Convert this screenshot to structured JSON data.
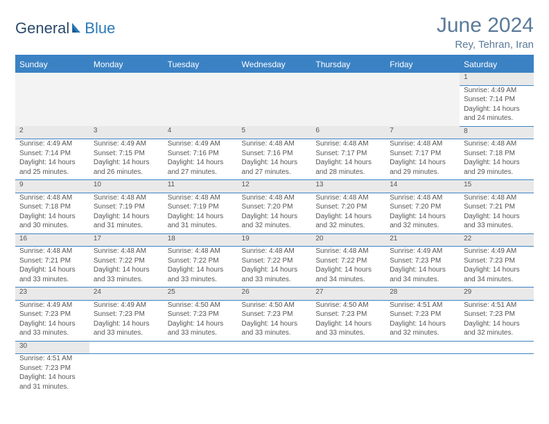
{
  "brand": {
    "word1": "General",
    "word2": "Blue"
  },
  "title": "June 2024",
  "location": "Rey, Tehran, Iran",
  "colors": {
    "header_bg": "#3b82c4",
    "header_text": "#ffffff",
    "daynum_bg": "#e9e9e9",
    "text": "#555555",
    "title_color": "#5a7a9a",
    "divider": "#3b82c4"
  },
  "weekdays": [
    "Sunday",
    "Monday",
    "Tuesday",
    "Wednesday",
    "Thursday",
    "Friday",
    "Saturday"
  ],
  "weeks": [
    [
      null,
      null,
      null,
      null,
      null,
      null,
      {
        "n": "1",
        "sr": "Sunrise: 4:49 AM",
        "ss": "Sunset: 7:14 PM",
        "d1": "Daylight: 14 hours",
        "d2": "and 24 minutes."
      }
    ],
    [
      {
        "n": "2",
        "sr": "Sunrise: 4:49 AM",
        "ss": "Sunset: 7:14 PM",
        "d1": "Daylight: 14 hours",
        "d2": "and 25 minutes."
      },
      {
        "n": "3",
        "sr": "Sunrise: 4:49 AM",
        "ss": "Sunset: 7:15 PM",
        "d1": "Daylight: 14 hours",
        "d2": "and 26 minutes."
      },
      {
        "n": "4",
        "sr": "Sunrise: 4:49 AM",
        "ss": "Sunset: 7:16 PM",
        "d1": "Daylight: 14 hours",
        "d2": "and 27 minutes."
      },
      {
        "n": "5",
        "sr": "Sunrise: 4:48 AM",
        "ss": "Sunset: 7:16 PM",
        "d1": "Daylight: 14 hours",
        "d2": "and 27 minutes."
      },
      {
        "n": "6",
        "sr": "Sunrise: 4:48 AM",
        "ss": "Sunset: 7:17 PM",
        "d1": "Daylight: 14 hours",
        "d2": "and 28 minutes."
      },
      {
        "n": "7",
        "sr": "Sunrise: 4:48 AM",
        "ss": "Sunset: 7:17 PM",
        "d1": "Daylight: 14 hours",
        "d2": "and 29 minutes."
      },
      {
        "n": "8",
        "sr": "Sunrise: 4:48 AM",
        "ss": "Sunset: 7:18 PM",
        "d1": "Daylight: 14 hours",
        "d2": "and 29 minutes."
      }
    ],
    [
      {
        "n": "9",
        "sr": "Sunrise: 4:48 AM",
        "ss": "Sunset: 7:18 PM",
        "d1": "Daylight: 14 hours",
        "d2": "and 30 minutes."
      },
      {
        "n": "10",
        "sr": "Sunrise: 4:48 AM",
        "ss": "Sunset: 7:19 PM",
        "d1": "Daylight: 14 hours",
        "d2": "and 31 minutes."
      },
      {
        "n": "11",
        "sr": "Sunrise: 4:48 AM",
        "ss": "Sunset: 7:19 PM",
        "d1": "Daylight: 14 hours",
        "d2": "and 31 minutes."
      },
      {
        "n": "12",
        "sr": "Sunrise: 4:48 AM",
        "ss": "Sunset: 7:20 PM",
        "d1": "Daylight: 14 hours",
        "d2": "and 32 minutes."
      },
      {
        "n": "13",
        "sr": "Sunrise: 4:48 AM",
        "ss": "Sunset: 7:20 PM",
        "d1": "Daylight: 14 hours",
        "d2": "and 32 minutes."
      },
      {
        "n": "14",
        "sr": "Sunrise: 4:48 AM",
        "ss": "Sunset: 7:20 PM",
        "d1": "Daylight: 14 hours",
        "d2": "and 32 minutes."
      },
      {
        "n": "15",
        "sr": "Sunrise: 4:48 AM",
        "ss": "Sunset: 7:21 PM",
        "d1": "Daylight: 14 hours",
        "d2": "and 33 minutes."
      }
    ],
    [
      {
        "n": "16",
        "sr": "Sunrise: 4:48 AM",
        "ss": "Sunset: 7:21 PM",
        "d1": "Daylight: 14 hours",
        "d2": "and 33 minutes."
      },
      {
        "n": "17",
        "sr": "Sunrise: 4:48 AM",
        "ss": "Sunset: 7:22 PM",
        "d1": "Daylight: 14 hours",
        "d2": "and 33 minutes."
      },
      {
        "n": "18",
        "sr": "Sunrise: 4:48 AM",
        "ss": "Sunset: 7:22 PM",
        "d1": "Daylight: 14 hours",
        "d2": "and 33 minutes."
      },
      {
        "n": "19",
        "sr": "Sunrise: 4:48 AM",
        "ss": "Sunset: 7:22 PM",
        "d1": "Daylight: 14 hours",
        "d2": "and 33 minutes."
      },
      {
        "n": "20",
        "sr": "Sunrise: 4:48 AM",
        "ss": "Sunset: 7:22 PM",
        "d1": "Daylight: 14 hours",
        "d2": "and 34 minutes."
      },
      {
        "n": "21",
        "sr": "Sunrise: 4:49 AM",
        "ss": "Sunset: 7:23 PM",
        "d1": "Daylight: 14 hours",
        "d2": "and 34 minutes."
      },
      {
        "n": "22",
        "sr": "Sunrise: 4:49 AM",
        "ss": "Sunset: 7:23 PM",
        "d1": "Daylight: 14 hours",
        "d2": "and 34 minutes."
      }
    ],
    [
      {
        "n": "23",
        "sr": "Sunrise: 4:49 AM",
        "ss": "Sunset: 7:23 PM",
        "d1": "Daylight: 14 hours",
        "d2": "and 33 minutes."
      },
      {
        "n": "24",
        "sr": "Sunrise: 4:49 AM",
        "ss": "Sunset: 7:23 PM",
        "d1": "Daylight: 14 hours",
        "d2": "and 33 minutes."
      },
      {
        "n": "25",
        "sr": "Sunrise: 4:50 AM",
        "ss": "Sunset: 7:23 PM",
        "d1": "Daylight: 14 hours",
        "d2": "and 33 minutes."
      },
      {
        "n": "26",
        "sr": "Sunrise: 4:50 AM",
        "ss": "Sunset: 7:23 PM",
        "d1": "Daylight: 14 hours",
        "d2": "and 33 minutes."
      },
      {
        "n": "27",
        "sr": "Sunrise: 4:50 AM",
        "ss": "Sunset: 7:23 PM",
        "d1": "Daylight: 14 hours",
        "d2": "and 33 minutes."
      },
      {
        "n": "28",
        "sr": "Sunrise: 4:51 AM",
        "ss": "Sunset: 7:23 PM",
        "d1": "Daylight: 14 hours",
        "d2": "and 32 minutes."
      },
      {
        "n": "29",
        "sr": "Sunrise: 4:51 AM",
        "ss": "Sunset: 7:23 PM",
        "d1": "Daylight: 14 hours",
        "d2": "and 32 minutes."
      }
    ],
    [
      {
        "n": "30",
        "sr": "Sunrise: 4:51 AM",
        "ss": "Sunset: 7:23 PM",
        "d1": "Daylight: 14 hours",
        "d2": "and 31 minutes."
      },
      null,
      null,
      null,
      null,
      null,
      null
    ]
  ]
}
